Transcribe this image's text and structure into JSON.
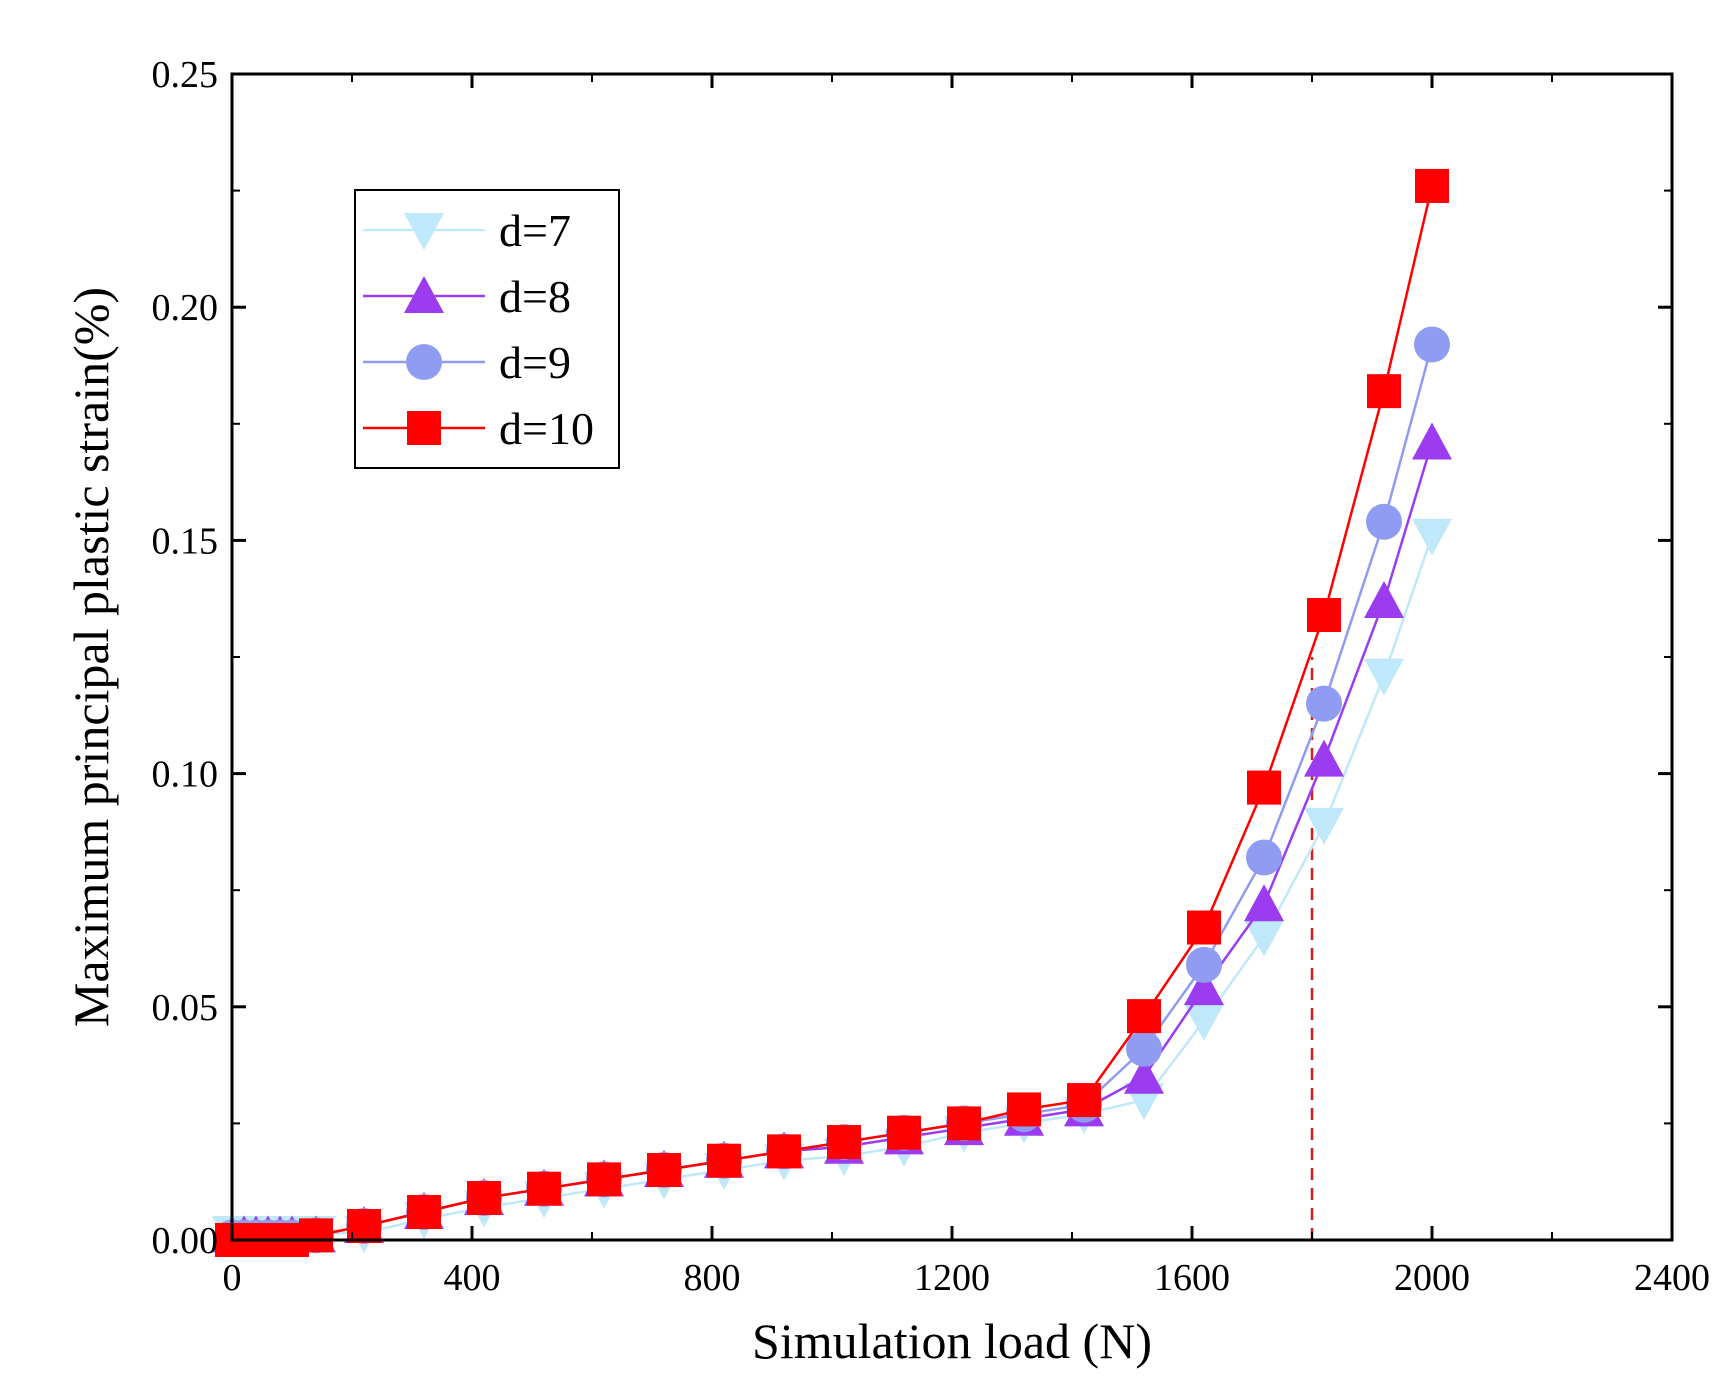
{
  "chart_data": {
    "type": "line",
    "title": "",
    "xlabel": "Simulation load (N)",
    "ylabel": "Maximum principal plastic strain(%)",
    "xlim": [
      0,
      2400
    ],
    "ylim": [
      0,
      0.25
    ],
    "xticks": [
      0,
      400,
      800,
      1200,
      1600,
      2000,
      2400
    ],
    "xtick_labels": [
      "0",
      "400",
      "800",
      "1200",
      "1600",
      "2000",
      "2400"
    ],
    "yticks": [
      0,
      0.05,
      0.1,
      0.15,
      0.2,
      0.25
    ],
    "ytick_labels": [
      "0.00",
      "0.05",
      "0.10",
      "0.15",
      "0.20",
      "0.25"
    ],
    "grid": false,
    "legend_position": "top-left",
    "x": [
      0,
      20,
      40,
      60,
      80,
      100,
      140,
      220,
      320,
      420,
      520,
      620,
      720,
      820,
      920,
      1020,
      1120,
      1220,
      1320,
      1420,
      1520,
      1620,
      1720,
      1820,
      1920,
      2000
    ],
    "series": [
      {
        "name": "d=7",
        "color": "#bfe9fb",
        "marker": "triangle-down",
        "values": [
          0.0015,
          0.0015,
          0.0015,
          0.0015,
          0.0015,
          0.0015,
          0.0015,
          0.0015,
          0.0045,
          0.007,
          0.009,
          0.011,
          0.013,
          0.015,
          0.017,
          0.018,
          0.02,
          0.023,
          0.025,
          0.027,
          0.03,
          0.047,
          0.065,
          0.089,
          0.121,
          0.151
        ]
      },
      {
        "name": "d=8",
        "color": "#9b3cf0",
        "marker": "triangle-up",
        "values": [
          0.001,
          0.001,
          0.001,
          0.001,
          0.001,
          0.001,
          0.001,
          0.003,
          0.006,
          0.009,
          0.011,
          0.013,
          0.015,
          0.017,
          0.019,
          0.02,
          0.022,
          0.024,
          0.026,
          0.028,
          0.035,
          0.054,
          0.072,
          0.103,
          0.137,
          0.171
        ]
      },
      {
        "name": "d=9",
        "color": "#8f9cf2",
        "marker": "circle",
        "values": [
          0.0005,
          0.0005,
          0.0005,
          0.0005,
          0.0005,
          0.0005,
          0.001,
          0.003,
          0.006,
          0.009,
          0.011,
          0.013,
          0.015,
          0.017,
          0.019,
          0.021,
          0.023,
          0.025,
          0.027,
          0.029,
          0.041,
          0.059,
          0.082,
          0.115,
          0.154,
          0.192
        ]
      },
      {
        "name": "d=10",
        "color": "#ff0000",
        "marker": "square",
        "values": [
          0,
          0,
          0,
          0,
          0,
          0,
          0.001,
          0.003,
          0.006,
          0.009,
          0.011,
          0.013,
          0.015,
          0.017,
          0.019,
          0.021,
          0.023,
          0.025,
          0.028,
          0.03,
          0.048,
          0.067,
          0.097,
          0.134,
          0.182,
          0.226
        ]
      }
    ],
    "reference_line": {
      "orientation": "vertical",
      "x": 1800,
      "y_from": 0,
      "y_to": 0.125,
      "color": "#d62020",
      "style": "dashed"
    }
  }
}
